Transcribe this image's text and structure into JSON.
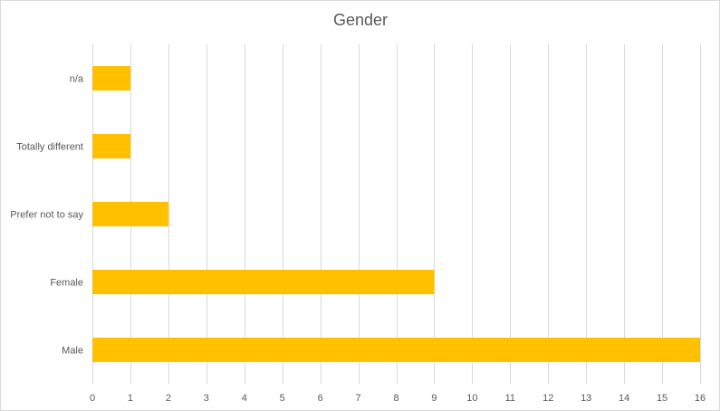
{
  "chart_data": {
    "type": "bar",
    "orientation": "horizontal",
    "title": "Gender",
    "categories": [
      "n/a",
      "Totally different",
      "Prefer not to say",
      "Female",
      "Male"
    ],
    "values": [
      1,
      1,
      2,
      9,
      16
    ],
    "xlim": [
      0,
      16
    ],
    "xticks": [
      "0",
      "1",
      "2",
      "3",
      "4",
      "5",
      "6",
      "7",
      "8",
      "9",
      "10",
      "11",
      "12",
      "13",
      "14",
      "15",
      "16"
    ],
    "grid": "vertical",
    "legend": "none",
    "bar_color": "#FFC000",
    "grid_color": "#D9D9D9",
    "text_color": "#595959"
  }
}
